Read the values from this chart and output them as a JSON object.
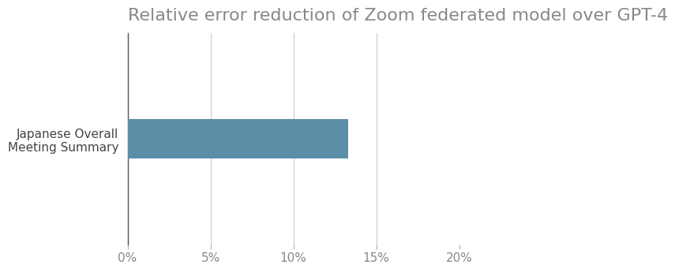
{
  "title": "Relative error reduction of Zoom federated model over GPT-4",
  "categories": [
    "Japanese Overall\nMeeting Summary"
  ],
  "values": [
    0.133
  ],
  "bar_color": "#5b8fa8",
  "xlim": [
    0,
    0.2
  ],
  "xticks": [
    0.0,
    0.05,
    0.1,
    0.15,
    0.2
  ],
  "xtick_labels": [
    "0%",
    "5%",
    "10%",
    "15%",
    "20%"
  ],
  "background_color": "#ffffff",
  "title_fontsize": 16,
  "tick_fontsize": 11,
  "label_fontsize": 11,
  "grid_color": "#cccccc",
  "title_color": "#888888",
  "bar_height": 0.38
}
